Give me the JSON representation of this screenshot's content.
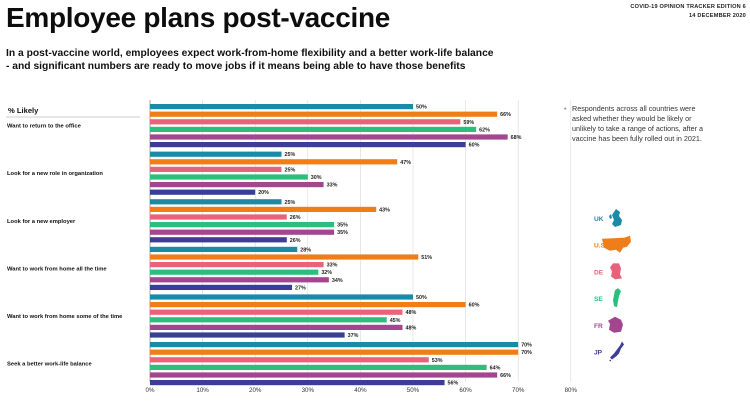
{
  "header": {
    "title": "Employee plans post-vaccine",
    "edition_line1": "COVID-19 OPINION TRACKER EDITION 6",
    "edition_line2": "14 DECEMBER 2020"
  },
  "subtitle": {
    "line1": "In a post-vaccine world, employees expect work-from-home flexibility and a better work-life balance",
    "line2": "- and significant numbers are ready to move jobs if it means being able to have those benefits"
  },
  "side_note": "Respondents across all countries were asked whether they would be likely or unlikely to take a range of actions, after a vaccine has been fully rolled out in 2021.",
  "colors": {
    "UK": "#1a8aa6",
    "U.S.": "#ef7d1a",
    "DE": "#e8627a",
    "SE": "#2bbf7e",
    "FR": "#a4468f",
    "JP": "#3b3d96"
  },
  "chart_data": {
    "type": "bar",
    "orientation": "horizontal",
    "ylabel": "% Likely",
    "categories": [
      "Want to return to the office",
      "Look for a new role in organization",
      "Look for a new employer",
      "Want to work from home all the time",
      "Want to work from home some of the time",
      "Seek a better work-life balance"
    ],
    "series": [
      {
        "name": "UK",
        "values": [
          50,
          25,
          25,
          28,
          50,
          70
        ]
      },
      {
        "name": "U.S.",
        "values": [
          66,
          47,
          43,
          51,
          60,
          70
        ]
      },
      {
        "name": "DE",
        "values": [
          59,
          25,
          26,
          33,
          48,
          53
        ]
      },
      {
        "name": "SE",
        "values": [
          62,
          30,
          35,
          32,
          45,
          64
        ]
      },
      {
        "name": "FR",
        "values": [
          68,
          33,
          35,
          34,
          48,
          66
        ]
      },
      {
        "name": "JP",
        "values": [
          60,
          20,
          26,
          27,
          37,
          56
        ]
      }
    ],
    "value_suffix": "%",
    "xlim": [
      0,
      80
    ],
    "xticks": [
      "0%",
      "10%",
      "20%",
      "30%",
      "40%",
      "50%",
      "60%",
      "70%",
      "80%"
    ],
    "grid": true,
    "legend_placement": "right"
  },
  "legend": [
    {
      "label": "UK",
      "icon": "uk-map-icon"
    },
    {
      "label": "U.S.",
      "icon": "us-map-icon"
    },
    {
      "label": "DE",
      "icon": "germany-map-icon"
    },
    {
      "label": "SE",
      "icon": "sweden-map-icon"
    },
    {
      "label": "FR",
      "icon": "france-map-icon"
    },
    {
      "label": "JP",
      "icon": "japan-map-icon"
    }
  ]
}
